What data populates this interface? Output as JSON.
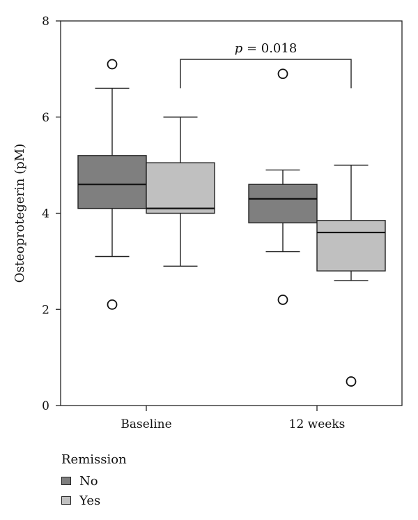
{
  "chart_data": {
    "type": "boxplot",
    "ylabel": "Osteoprotegerin (pM)",
    "xlabel": "",
    "ylim": [
      0,
      8
    ],
    "yticks": [
      0,
      2,
      4,
      6,
      8
    ],
    "categories": [
      "Baseline",
      "12 weeks"
    ],
    "legend": {
      "title": "Remission",
      "placement": "bottom-left",
      "entries": [
        {
          "name": "No",
          "color": "#7f7f7f"
        },
        {
          "name": "Yes",
          "color": "#c0c0c0"
        }
      ]
    },
    "series": [
      {
        "name": "No",
        "color": "#7f7f7f",
        "boxes": [
          {
            "category": "Baseline",
            "whisker_low": 3.1,
            "q1": 4.1,
            "median": 4.6,
            "q3": 5.2,
            "whisker_high": 6.6,
            "outliers": [
              7.1,
              2.1
            ]
          },
          {
            "category": "12 weeks",
            "whisker_low": 3.2,
            "q1": 3.8,
            "median": 4.3,
            "q3": 4.6,
            "whisker_high": 4.9,
            "outliers": [
              6.9,
              2.2
            ]
          }
        ]
      },
      {
        "name": "Yes",
        "color": "#c0c0c0",
        "boxes": [
          {
            "category": "Baseline",
            "whisker_low": 2.9,
            "q1": 4.0,
            "median": 4.1,
            "q3": 5.05,
            "whisker_high": 6.0,
            "outliers": []
          },
          {
            "category": "12 weeks",
            "whisker_low": 2.6,
            "q1": 2.8,
            "median": 3.6,
            "q3": 3.85,
            "whisker_high": 5.0,
            "outliers": [
              0.5
            ]
          }
        ]
      }
    ],
    "annotation": {
      "text": "p = 0.018",
      "p_symbol": "p",
      "p_rest": " = 0.018",
      "bracket_from": {
        "series": "Yes",
        "category": "Baseline"
      },
      "bracket_to": {
        "series": "Yes",
        "category": "12 weeks"
      },
      "bracket_y": 7.2,
      "tip_y": 6.6
    }
  }
}
